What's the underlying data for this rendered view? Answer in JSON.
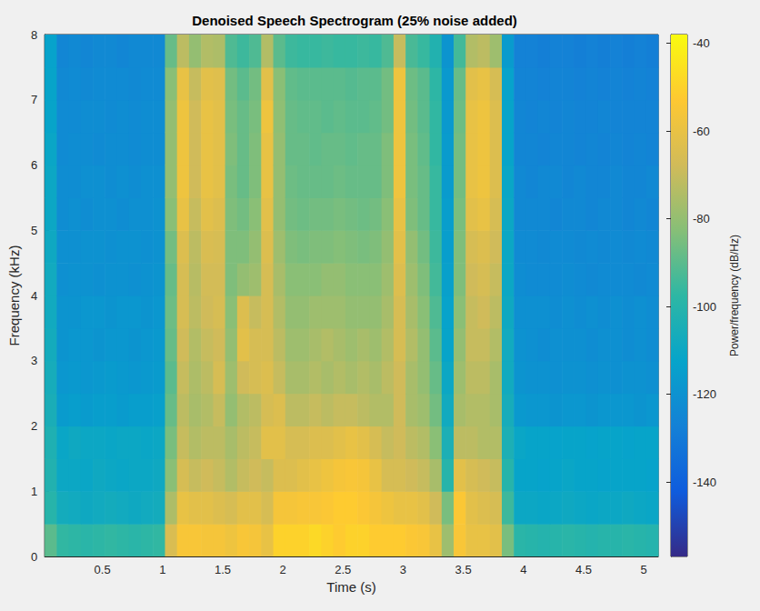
{
  "chart_data": {
    "type": "heatmap",
    "title": "Denoised Speech Spectrogram (25% noise added)",
    "x_label": "Time (s)",
    "y_label": "Frequency (kHz)",
    "xlim": [
      0.02,
      5.12
    ],
    "xticks": [
      0.5,
      1,
      1.5,
      2,
      2.5,
      3,
      3.5,
      4,
      4.5,
      5
    ],
    "ylim": [
      0,
      8
    ],
    "yticks": [
      0,
      1,
      2,
      3,
      4,
      5,
      6,
      7,
      8
    ],
    "grid": false,
    "time_edges": [
      0.02,
      0.12,
      0.22,
      0.32,
      0.42,
      0.52,
      0.62,
      0.72,
      0.82,
      0.92,
      1.02,
      1.12,
      1.22,
      1.32,
      1.42,
      1.52,
      1.62,
      1.72,
      1.82,
      1.92,
      2.02,
      2.12,
      2.22,
      2.32,
      2.42,
      2.52,
      2.62,
      2.72,
      2.82,
      2.92,
      3.02,
      3.12,
      3.22,
      3.32,
      3.42,
      3.52,
      3.62,
      3.72,
      3.82,
      3.92,
      4.02,
      4.12,
      4.22,
      4.32,
      4.42,
      4.52,
      4.62,
      4.72,
      4.82,
      4.92,
      5.02,
      5.12
    ],
    "freq_edges": [
      0,
      0.5,
      1,
      1.5,
      2,
      2.5,
      3,
      3.5,
      4,
      4.5,
      5,
      5.5,
      6,
      6.5,
      7,
      7.5,
      8
    ],
    "power": [
      [
        -90,
        -100,
        -102,
        -103,
        -105,
        -106,
        -107,
        -108,
        -108,
        -109,
        -110,
        -110,
        -111,
        -112,
        -112,
        -113
      ],
      [
        -97,
        -107,
        -110,
        -111,
        -116,
        -118,
        -119,
        -119,
        -121,
        -121,
        -122,
        -122,
        -123,
        -123,
        -124,
        -125
      ],
      [
        -98,
        -108,
        -110,
        -109,
        -115,
        -117,
        -118,
        -119,
        -120,
        -121,
        -121,
        -122,
        -122,
        -123,
        -123,
        -124
      ],
      [
        -99,
        -109,
        -111,
        -110,
        -116,
        -118,
        -118,
        -118,
        -120,
        -120,
        -122,
        -121,
        -122,
        -122,
        -124,
        -125
      ],
      [
        -98,
        -108,
        -109,
        -110,
        -115,
        -117,
        -119,
        -118,
        -121,
        -120,
        -121,
        -121,
        -123,
        -122,
        -123,
        -124
      ],
      [
        -97,
        -107,
        -110,
        -111,
        -115,
        -116,
        -118,
        -119,
        -120,
        -121,
        -121,
        -122,
        -122,
        -123,
        -123,
        -124
      ],
      [
        -98,
        -108,
        -111,
        -110,
        -116,
        -117,
        -118,
        -118,
        -120,
        -120,
        -122,
        -121,
        -122,
        -122,
        -123,
        -125
      ],
      [
        -99,
        -109,
        -110,
        -110,
        -115,
        -118,
        -119,
        -118,
        -121,
        -120,
        -121,
        -122,
        -123,
        -123,
        -124,
        -124
      ],
      [
        -98,
        -108,
        -110,
        -111,
        -115,
        -117,
        -118,
        -119,
        -120,
        -121,
        -121,
        -121,
        -122,
        -122,
        -123,
        -124
      ],
      [
        -97,
        -107,
        -109,
        -110,
        -114,
        -116,
        -117,
        -118,
        -119,
        -120,
        -120,
        -121,
        -122,
        -122,
        -123,
        -124
      ],
      [
        -65,
        -75,
        -82,
        -85,
        -88,
        -90,
        -88,
        -87,
        -88,
        -86,
        -82,
        -80,
        -80,
        -80,
        -82,
        -88
      ],
      [
        -55,
        -60,
        -66,
        -70,
        -72,
        -70,
        -68,
        -66,
        -66,
        -64,
        -60,
        -58,
        -58,
        -58,
        -60,
        -72
      ],
      [
        -55,
        -62,
        -70,
        -74,
        -76,
        -75,
        -74,
        -72,
        -73,
        -72,
        -70,
        -68,
        -68,
        -68,
        -70,
        -80
      ],
      [
        -56,
        -62,
        -68,
        -72,
        -74,
        -72,
        -70,
        -68,
        -67,
        -65,
        -62,
        -60,
        -60,
        -60,
        -62,
        -74
      ],
      [
        -56,
        -64,
        -70,
        -72,
        -70,
        -66,
        -68,
        -66,
        -67,
        -66,
        -64,
        -62,
        -62,
        -62,
        -63,
        -75
      ],
      [
        -58,
        -66,
        -74,
        -76,
        -80,
        -78,
        -80,
        -82,
        -84,
        -84,
        -84,
        -85,
        -84,
        -85,
        -86,
        -92
      ],
      [
        -55,
        -62,
        -70,
        -72,
        -74,
        -68,
        -62,
        -64,
        -80,
        -84,
        -86,
        -88,
        -88,
        -88,
        -90,
        -95
      ],
      [
        -56,
        -62,
        -68,
        -70,
        -72,
        -66,
        -66,
        -70,
        -78,
        -80,
        -82,
        -84,
        -84,
        -85,
        -86,
        -92
      ],
      [
        -60,
        -66,
        -70,
        -62,
        -66,
        -64,
        -66,
        -66,
        -66,
        -64,
        -62,
        -60,
        -60,
        -58,
        -62,
        -74
      ],
      [
        -50,
        -56,
        -64,
        -62,
        -64,
        -70,
        -72,
        -74,
        -76,
        -78,
        -80,
        -80,
        -80,
        -81,
        -82,
        -90
      ],
      [
        -50,
        -56,
        -64,
        -66,
        -72,
        -76,
        -78,
        -80,
        -82,
        -84,
        -86,
        -87,
        -88,
        -88,
        -89,
        -95
      ],
      [
        -50,
        -55,
        -62,
        -66,
        -72,
        -76,
        -78,
        -80,
        -82,
        -85,
        -87,
        -88,
        -88,
        -89,
        -90,
        -96
      ],
      [
        -48,
        -55,
        -60,
        -64,
        -70,
        -74,
        -76,
        -78,
        -82,
        -84,
        -86,
        -88,
        -89,
        -89,
        -90,
        -96
      ],
      [
        -50,
        -54,
        -58,
        -64,
        -72,
        -76,
        -74,
        -78,
        -80,
        -84,
        -86,
        -88,
        -88,
        -90,
        -90,
        -95
      ],
      [
        -52,
        -52,
        -56,
        -62,
        -70,
        -74,
        -76,
        -78,
        -80,
        -83,
        -85,
        -87,
        -88,
        -89,
        -90,
        -96
      ],
      [
        -50,
        -52,
        -55,
        -60,
        -70,
        -76,
        -78,
        -80,
        -82,
        -84,
        -86,
        -88,
        -89,
        -90,
        -91,
        -96
      ],
      [
        -50,
        -54,
        -56,
        -62,
        -72,
        -74,
        -76,
        -80,
        -82,
        -85,
        -87,
        -88,
        -88,
        -90,
        -90,
        -95
      ],
      [
        -52,
        -56,
        -60,
        -66,
        -74,
        -76,
        -78,
        -80,
        -82,
        -84,
        -86,
        -88,
        -88,
        -89,
        -90,
        -96
      ],
      [
        -52,
        -58,
        -66,
        -70,
        -74,
        -72,
        -74,
        -76,
        -78,
        -80,
        -82,
        -84,
        -84,
        -86,
        -86,
        -92
      ],
      [
        -52,
        -60,
        -66,
        -68,
        -68,
        -68,
        -66,
        -66,
        -64,
        -62,
        -60,
        -58,
        -58,
        -58,
        -58,
        -70
      ],
      [
        -54,
        -60,
        -68,
        -72,
        -76,
        -76,
        -74,
        -76,
        -78,
        -80,
        -84,
        -85,
        -85,
        -86,
        -87,
        -93
      ],
      [
        -55,
        -62,
        -70,
        -74,
        -78,
        -80,
        -80,
        -82,
        -84,
        -86,
        -88,
        -88,
        -89,
        -90,
        -90,
        -96
      ],
      [
        -60,
        -68,
        -76,
        -82,
        -86,
        -88,
        -90,
        -92,
        -94,
        -95,
        -96,
        -96,
        -97,
        -97,
        -98,
        -102
      ],
      [
        -78,
        -85,
        -100,
        -104,
        -108,
        -110,
        -112,
        -113,
        -114,
        -115,
        -115,
        -116,
        -116,
        -117,
        -117,
        -119
      ],
      [
        -55,
        -54,
        -62,
        -72,
        -76,
        -78,
        -80,
        -82,
        -84,
        -84,
        -85,
        -86,
        -86,
        -87,
        -88,
        -94
      ],
      [
        -60,
        -62,
        -66,
        -72,
        -74,
        -72,
        -70,
        -70,
        -68,
        -66,
        -62,
        -60,
        -60,
        -60,
        -62,
        -74
      ],
      [
        -60,
        -64,
        -68,
        -74,
        -74,
        -72,
        -70,
        -68,
        -66,
        -64,
        -60,
        -58,
        -58,
        -58,
        -60,
        -72
      ],
      [
        -62,
        -66,
        -70,
        -74,
        -76,
        -76,
        -74,
        -72,
        -70,
        -68,
        -66,
        -64,
        -64,
        -64,
        -66,
        -78
      ],
      [
        -85,
        -95,
        -100,
        -104,
        -106,
        -108,
        -108,
        -109,
        -110,
        -110,
        -110,
        -111,
        -112,
        -112,
        -113,
        -116
      ],
      [
        -99,
        -110,
        -112,
        -111,
        -117,
        -119,
        -120,
        -121,
        -122,
        -123,
        -124,
        -124,
        -125,
        -125,
        -126,
        -127
      ],
      [
        -100,
        -110,
        -112,
        -112,
        -118,
        -120,
        -121,
        -121,
        -123,
        -123,
        -124,
        -125,
        -125,
        -126,
        -126,
        -127
      ],
      [
        -101,
        -111,
        -113,
        -112,
        -118,
        -120,
        -122,
        -121,
        -123,
        -124,
        -124,
        -124,
        -126,
        -125,
        -127,
        -128
      ],
      [
        -100,
        -110,
        -112,
        -113,
        -119,
        -121,
        -121,
        -122,
        -123,
        -123,
        -125,
        -124,
        -125,
        -126,
        -126,
        -127
      ],
      [
        -99,
        -109,
        -111,
        -112,
        -118,
        -120,
        -121,
        -121,
        -122,
        -123,
        -124,
        -125,
        -125,
        -125,
        -126,
        -127
      ],
      [
        -100,
        -110,
        -112,
        -112,
        -118,
        -120,
        -121,
        -122,
        -123,
        -124,
        -124,
        -124,
        -126,
        -126,
        -127,
        -128
      ],
      [
        -101,
        -111,
        -112,
        -113,
        -119,
        -121,
        -122,
        -121,
        -124,
        -123,
        -125,
        -125,
        -125,
        -126,
        -126,
        -127
      ],
      [
        -100,
        -110,
        -113,
        -112,
        -118,
        -120,
        -121,
        -122,
        -123,
        -124,
        -124,
        -125,
        -126,
        -125,
        -127,
        -128
      ],
      [
        -100,
        -110,
        -112,
        -112,
        -118,
        -121,
        -121,
        -121,
        -123,
        -123,
        -124,
        -124,
        -125,
        -126,
        -126,
        -127
      ],
      [
        -99,
        -109,
        -112,
        -113,
        -118,
        -120,
        -122,
        -122,
        -123,
        -124,
        -125,
        -125,
        -126,
        -126,
        -127,
        -128
      ],
      [
        -100,
        -110,
        -112,
        -112,
        -119,
        -120,
        -121,
        -121,
        -124,
        -123,
        -124,
        -125,
        -125,
        -126,
        -126,
        -127
      ],
      [
        -101,
        -111,
        -113,
        -112,
        -118,
        -121,
        -122,
        -122,
        -123,
        -124,
        -125,
        -124,
        -126,
        -126,
        -127,
        -128
      ]
    ],
    "colorbar": {
      "label": "Power/frequency (dB/Hz)",
      "range": [
        -157,
        -38
      ],
      "ticks": [
        -140,
        -120,
        -100,
        -80,
        -60,
        -40
      ]
    }
  }
}
